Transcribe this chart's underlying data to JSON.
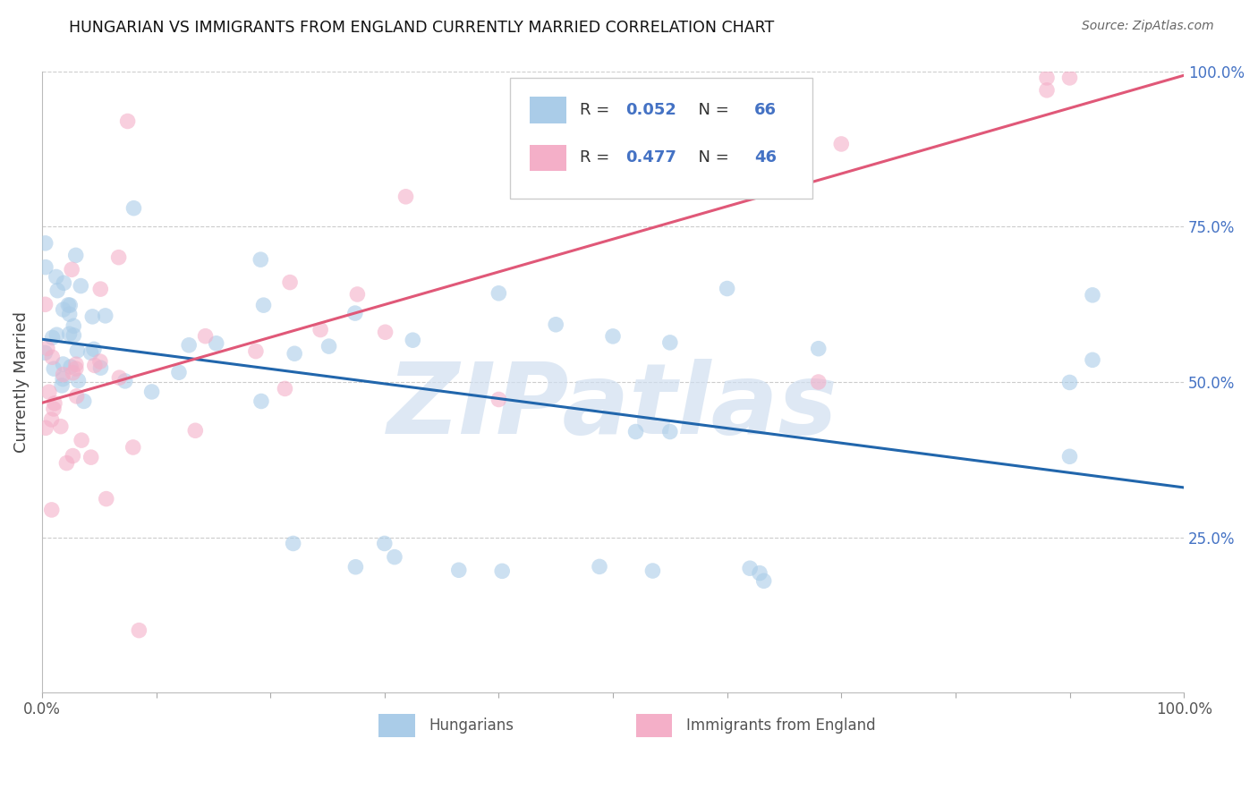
{
  "title": "HUNGARIAN VS IMMIGRANTS FROM ENGLAND CURRENTLY MARRIED CORRELATION CHART",
  "source": "Source: ZipAtlas.com",
  "ylabel": "Currently Married",
  "legend_label1": "Hungarians",
  "legend_label2": "Immigrants from England",
  "r1": 0.052,
  "n1": 66,
  "r2": 0.477,
  "n2": 46,
  "color_blue": "#aacce8",
  "color_pink": "#f4afc8",
  "line_blue": "#2166ac",
  "line_pink": "#e05878",
  "watermark_text": "ZIPatlas",
  "watermark_color": "#d0dff0",
  "xlim": [
    0,
    1
  ],
  "ylim": [
    0,
    1
  ],
  "dot_size": 160,
  "dot_alpha": 0.6,
  "grid_color": "#cccccc",
  "grid_style": "--",
  "grid_lw": 0.8,
  "tick_color": "#4472c4",
  "xlabel_color": "#555555",
  "title_color": "#111111",
  "source_color": "#666666",
  "ylabel_color": "#444444"
}
